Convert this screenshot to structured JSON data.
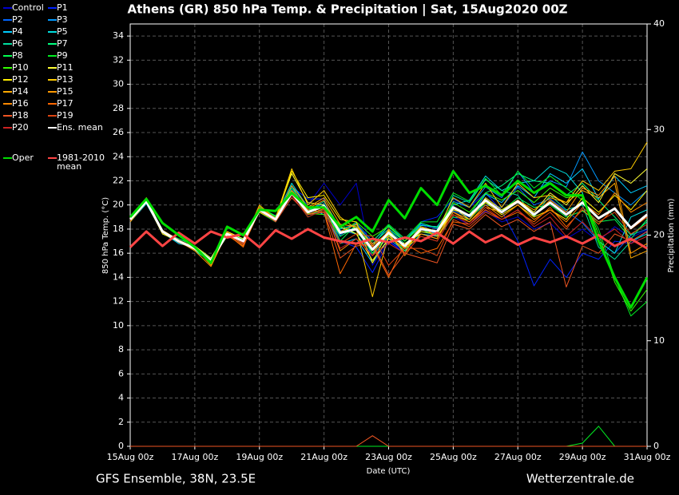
{
  "chart_data": {
    "type": "line",
    "title": "Athens  (GR)  850 hPa Temp. & Precipitation | Sat, 15Aug2020 00Z",
    "subtitle": "GFS Ensemble, 38N, 23.5E",
    "source": "Wetterzentrale.de",
    "xlabel": "Date (UTC)",
    "ylabel": "850 hPa Temp. (°C)",
    "y2label": "Precipitation (mm)",
    "x": [
      "15Aug 00z",
      "15Aug 12z",
      "16Aug 00z",
      "16Aug 12z",
      "17Aug 00z",
      "17Aug 12z",
      "18Aug 00z",
      "18Aug 12z",
      "19Aug 00z",
      "19Aug 12z",
      "20Aug 00z",
      "20Aug 12z",
      "21Aug 00z",
      "21Aug 12z",
      "22Aug 00z",
      "22Aug 12z",
      "23Aug 00z",
      "23Aug 12z",
      "24Aug 00z",
      "24Aug 12z",
      "25Aug 00z",
      "25Aug 12z",
      "26Aug 00z",
      "26Aug 12z",
      "27Aug 00z",
      "27Aug 12z",
      "28Aug 00z",
      "28Aug 12z",
      "29Aug 00z",
      "29Aug 12z",
      "30Aug 00z",
      "30Aug 12z",
      "31Aug 00z"
    ],
    "xlim": [
      "15Aug 00z",
      "31Aug 00z"
    ],
    "xticks": [
      "15Aug 00z",
      "17Aug 00z",
      "19Aug 00z",
      "21Aug 00z",
      "23Aug 00z",
      "25Aug 00z",
      "27Aug 00z",
      "29Aug 00z",
      "31Aug 00z"
    ],
    "ylim": [
      0,
      35
    ],
    "yticks": [
      0,
      2,
      4,
      6,
      8,
      10,
      12,
      14,
      16,
      18,
      20,
      22,
      24,
      26,
      28,
      30,
      32,
      34
    ],
    "y2lim": [
      0,
      40
    ],
    "y2ticks": [
      0,
      10,
      20,
      30,
      40
    ],
    "grid": true,
    "series": [
      {
        "name": "Control",
        "color": "#0000cc",
        "values": [
          18.9,
          20.4,
          17.9,
          17.1,
          16.3,
          15.3,
          17.7,
          17.1,
          19.5,
          18.6,
          21.3,
          20.0,
          21.8,
          20.0,
          21.8,
          15.0,
          17.0,
          16.2,
          18.5,
          17.4,
          19.0,
          18.4,
          19.5,
          18.6,
          19.0,
          18.0,
          18.5,
          17.2,
          18.0,
          17.0,
          18.2,
          17.3,
          17.9
        ]
      },
      {
        "name": "P1",
        "color": "#0022ff",
        "values": [
          18.7,
          20.2,
          17.7,
          16.9,
          16.5,
          15.5,
          17.5,
          17.2,
          19.8,
          19.0,
          21.5,
          20.5,
          20.5,
          17.0,
          16.5,
          14.4,
          17.0,
          16.0,
          18.6,
          19.0,
          20.5,
          19.8,
          21.0,
          19.5,
          17.0,
          13.3,
          15.5,
          14.0,
          16.0,
          15.5,
          17.0,
          16.8,
          17.8
        ]
      },
      {
        "name": "P2",
        "color": "#0066ff",
        "values": [
          18.8,
          20.3,
          17.8,
          17.1,
          16.4,
          15.4,
          17.5,
          17.0,
          19.6,
          18.7,
          20.8,
          19.4,
          20.0,
          17.5,
          18.5,
          17.0,
          18.2,
          17.2,
          18.4,
          18.0,
          19.5,
          19.0,
          20.0,
          19.8,
          21.5,
          20.0,
          20.5,
          19.5,
          18.5,
          17.0,
          16.0,
          17.5,
          18.0
        ]
      },
      {
        "name": "P3",
        "color": "#0099ff",
        "values": [
          18.9,
          20.5,
          17.9,
          17.0,
          16.3,
          15.2,
          17.6,
          16.9,
          19.7,
          18.9,
          21.2,
          19.6,
          20.1,
          17.9,
          17.6,
          15.8,
          17.4,
          16.4,
          18.1,
          17.6,
          20.3,
          19.8,
          21.5,
          20.6,
          22.8,
          21.0,
          22.0,
          21.5,
          24.4,
          22.0,
          21.0,
          20.0,
          21.2
        ]
      },
      {
        "name": "P4",
        "color": "#00ccff",
        "values": [
          18.6,
          20.1,
          17.7,
          16.8,
          16.5,
          15.6,
          17.8,
          17.1,
          19.4,
          18.6,
          21.6,
          19.2,
          19.4,
          16.8,
          17.2,
          15.2,
          17.2,
          16.2,
          17.6,
          17.4,
          19.4,
          18.8,
          20.9,
          20.2,
          21.6,
          20.6,
          22.6,
          21.8,
          23.0,
          20.5,
          22.4,
          21.0,
          21.6
        ]
      },
      {
        "name": "P5",
        "color": "#00dddd",
        "values": [
          18.8,
          20.2,
          17.8,
          17.1,
          16.4,
          15.4,
          17.7,
          17.0,
          19.7,
          19.0,
          21.8,
          19.8,
          19.2,
          18.0,
          18.4,
          16.8,
          18.0,
          17.0,
          18.3,
          18.2,
          20.0,
          20.4,
          22.4,
          21.2,
          21.8,
          22.0,
          23.2,
          22.6,
          21.0,
          17.0,
          16.0,
          19.0,
          19.6
        ]
      },
      {
        "name": "P6",
        "color": "#00e0a0",
        "values": [
          18.7,
          20.4,
          17.9,
          17.0,
          16.2,
          15.3,
          17.6,
          17.2,
          19.5,
          18.9,
          20.9,
          19.5,
          20.3,
          18.1,
          17.9,
          16.0,
          17.9,
          16.8,
          17.8,
          17.5,
          20.8,
          20.2,
          22.1,
          21.2,
          20.8,
          19.0,
          20.8,
          19.6,
          20.0,
          16.5,
          15.5,
          17.0,
          17.6
        ]
      },
      {
        "name": "P7",
        "color": "#00ff80",
        "values": [
          19.0,
          20.3,
          17.8,
          17.2,
          16.6,
          15.5,
          17.4,
          17.0,
          19.8,
          19.1,
          21.0,
          19.2,
          19.6,
          17.4,
          18.2,
          16.6,
          18.3,
          17.0,
          18.5,
          18.1,
          19.6,
          19.2,
          21.0,
          21.6,
          22.6,
          22.0,
          21.8,
          20.8,
          21.8,
          20.4,
          19.0,
          17.5,
          18.6
        ]
      },
      {
        "name": "P8",
        "color": "#00ff50",
        "values": [
          18.9,
          20.4,
          17.8,
          17.0,
          16.4,
          15.4,
          17.6,
          16.8,
          19.6,
          18.8,
          21.4,
          19.6,
          19.8,
          17.0,
          18.4,
          16.0,
          17.5,
          16.2,
          18.0,
          17.4,
          19.0,
          18.8,
          20.2,
          19.5,
          20.6,
          19.8,
          20.0,
          19.0,
          19.5,
          18.6,
          18.8,
          17.2,
          18.8
        ]
      },
      {
        "name": "P9",
        "color": "#00ee22",
        "values": [
          18.8,
          20.6,
          17.7,
          16.9,
          16.3,
          15.5,
          17.7,
          17.1,
          19.4,
          18.6,
          21.1,
          19.0,
          19.6,
          18.4,
          17.6,
          17.0,
          18.4,
          17.2,
          18.6,
          18.6,
          21.0,
          20.3,
          22.2,
          20.8,
          22.8,
          21.4,
          22.4,
          21.4,
          20.4,
          18.0,
          14.0,
          10.8,
          12.0
        ],
        "precip": [
          0,
          0,
          0,
          0,
          0,
          0,
          0,
          0,
          0,
          0,
          0,
          0,
          0,
          0,
          0,
          0,
          0,
          0,
          0,
          0,
          0,
          0,
          0,
          0,
          0,
          0,
          0,
          0,
          0.3,
          1.9,
          0,
          0,
          0
        ]
      },
      {
        "name": "P10",
        "color": "#33ff00",
        "values": [
          18.9,
          20.5,
          17.9,
          17.1,
          16.5,
          15.4,
          17.4,
          16.9,
          19.9,
          19.0,
          21.2,
          19.3,
          19.2,
          17.6,
          18.6,
          17.4,
          18.2,
          17.0,
          18.2,
          17.8,
          20.2,
          19.4,
          21.0,
          20.4,
          21.2,
          20.2,
          21.4,
          20.6,
          20.8,
          17.6,
          13.6,
          11.2,
          13.0
        ]
      },
      {
        "name": "P11",
        "color": "#ffff33",
        "values": [
          18.7,
          20.2,
          17.6,
          17.0,
          16.6,
          15.6,
          17.8,
          17.2,
          19.7,
          18.9,
          22.6,
          20.2,
          20.0,
          18.2,
          17.6,
          15.4,
          17.2,
          16.8,
          17.6,
          17.2,
          19.8,
          18.8,
          20.6,
          19.6,
          20.4,
          19.4,
          21.0,
          20.0,
          21.6,
          20.2,
          22.6,
          21.8,
          23.0
        ]
      },
      {
        "name": "P12",
        "color": "#ffee00",
        "values": [
          18.9,
          20.3,
          17.8,
          16.9,
          16.4,
          15.3,
          17.6,
          17.0,
          19.4,
          18.7,
          22.8,
          20.6,
          20.8,
          18.8,
          18.6,
          15.2,
          17.9,
          16.4,
          17.8,
          17.6,
          19.6,
          19.2,
          20.2,
          19.2,
          20.0,
          19.0,
          19.6,
          18.8,
          20.6,
          19.4,
          20.8,
          19.6,
          21.2
        ]
      },
      {
        "name": "P13",
        "color": "#ffcc00",
        "values": [
          18.8,
          20.4,
          17.9,
          17.1,
          16.3,
          15.4,
          17.5,
          17.1,
          19.6,
          18.9,
          23.0,
          20.0,
          21.2,
          19.0,
          18.0,
          12.4,
          17.6,
          16.0,
          18.2,
          17.8,
          20.6,
          19.8,
          21.8,
          19.8,
          21.8,
          20.6,
          20.8,
          20.2,
          22.0,
          21.2,
          22.8,
          23.0,
          25.2
        ]
      },
      {
        "name": "P14",
        "color": "#ffaa00",
        "values": [
          18.6,
          20.2,
          17.7,
          17.0,
          16.5,
          15.0,
          17.8,
          17.0,
          19.6,
          18.8,
          21.6,
          19.8,
          20.6,
          18.4,
          18.2,
          16.8,
          17.4,
          16.4,
          17.4,
          17.0,
          19.2,
          18.6,
          19.8,
          19.4,
          20.4,
          19.6,
          20.6,
          20.2,
          21.2,
          20.6,
          21.8,
          15.6,
          16.2
        ]
      },
      {
        "name": "P15",
        "color": "#ff9900",
        "values": [
          19.0,
          20.6,
          17.8,
          17.0,
          16.2,
          14.9,
          17.7,
          16.9,
          20.0,
          18.8,
          21.2,
          19.7,
          20.4,
          17.8,
          18.4,
          16.6,
          17.8,
          16.6,
          18.2,
          17.4,
          19.4,
          18.8,
          20.4,
          19.4,
          20.2,
          19.2,
          20.4,
          19.4,
          21.4,
          20.8,
          22.4,
          16.0,
          16.8
        ]
      },
      {
        "name": "P16",
        "color": "#ff8800",
        "values": [
          18.8,
          20.4,
          17.9,
          17.1,
          16.4,
          15.2,
          17.5,
          16.6,
          19.5,
          18.7,
          21.0,
          19.2,
          19.7,
          16.2,
          17.2,
          15.8,
          18.0,
          15.8,
          17.6,
          17.2,
          19.4,
          18.6,
          20.0,
          19.0,
          20.0,
          18.8,
          19.6,
          18.6,
          20.2,
          19.2,
          21.0,
          19.4,
          20.2
        ]
      },
      {
        "name": "P17",
        "color": "#ff6600",
        "values": [
          18.7,
          20.3,
          17.8,
          16.9,
          16.3,
          15.4,
          17.6,
          16.5,
          19.8,
          18.9,
          21.0,
          19.6,
          19.4,
          14.3,
          16.8,
          16.6,
          14.0,
          16.8,
          16.0,
          16.4,
          18.6,
          18.4,
          19.6,
          18.8,
          19.4,
          18.6,
          19.8,
          18.2,
          19.6,
          18.4,
          19.8,
          18.0,
          19.0
        ]
      },
      {
        "name": "P18",
        "color": "#ee5522",
        "values": [
          18.8,
          20.5,
          17.7,
          17.0,
          16.4,
          15.5,
          17.6,
          16.7,
          19.6,
          18.6,
          20.6,
          19.2,
          19.4,
          15.6,
          16.6,
          16.8,
          14.2,
          16.0,
          15.6,
          15.2,
          18.4,
          18.0,
          19.2,
          18.2,
          18.8,
          17.8,
          18.6,
          13.2,
          16.6,
          16.0,
          17.6,
          17.0,
          17.8
        ],
        "precip": [
          0,
          0,
          0,
          0,
          0,
          0,
          0,
          0,
          0,
          0,
          0,
          0,
          0,
          0,
          0,
          1.0,
          0,
          0,
          0,
          0,
          0,
          0,
          0,
          0,
          0,
          0,
          0,
          0,
          0,
          0,
          0,
          0,
          0
        ]
      },
      {
        "name": "P19",
        "color": "#dd4411",
        "values": [
          18.9,
          20.3,
          17.8,
          17.1,
          16.5,
          15.4,
          17.7,
          16.8,
          19.7,
          18.8,
          20.8,
          19.4,
          19.8,
          16.8,
          17.6,
          17.4,
          15.0,
          16.4,
          16.4,
          15.8,
          18.8,
          18.2,
          19.4,
          18.8,
          19.6,
          18.4,
          19.4,
          18.0,
          19.8,
          18.6,
          19.4,
          17.6,
          18.4
        ]
      },
      {
        "name": "P20",
        "color": "#cc2222",
        "values": [
          18.7,
          20.4,
          17.8,
          17.0,
          16.4,
          15.3,
          17.5,
          16.9,
          19.5,
          18.7,
          20.8,
          19.0,
          19.6,
          16.4,
          17.2,
          15.8,
          16.8,
          16.0,
          17.4,
          17.0,
          19.2,
          18.4,
          19.8,
          18.8,
          19.6,
          18.2,
          19.0,
          17.4,
          18.6,
          17.2,
          18.0,
          16.8,
          17.4
        ]
      },
      {
        "name": "Ens. mean",
        "color": "#ffffff",
        "values": [
          18.8,
          20.3,
          17.8,
          17.0,
          16.4,
          15.4,
          17.6,
          17.0,
          19.6,
          18.8,
          21.0,
          19.4,
          19.9,
          17.7,
          18.0,
          16.3,
          17.7,
          16.6,
          18.0,
          17.8,
          19.8,
          19.1,
          20.4,
          19.4,
          20.3,
          19.2,
          20.2,
          19.2,
          20.2,
          18.9,
          19.7,
          18.1,
          19.2
        ]
      },
      {
        "name": "1981-2010 mean",
        "color": "#ff4444",
        "values": [
          16.5,
          17.8,
          16.6,
          17.7,
          16.8,
          17.8,
          17.3,
          17.6,
          16.5,
          17.9,
          17.2,
          18.0,
          17.3,
          17.0,
          16.8,
          17.2,
          16.9,
          17.3,
          17.0,
          17.7,
          16.8,
          17.8,
          16.9,
          17.5,
          16.7,
          17.3,
          16.9,
          17.4,
          16.8,
          17.5,
          16.6,
          17.2,
          16.4
        ]
      },
      {
        "name": "Oper",
        "color": "#00dd00",
        "values": [
          19.0,
          20.5,
          18.5,
          17.5,
          16.5,
          15.2,
          18.2,
          17.5,
          19.6,
          19.5,
          21.0,
          19.8,
          19.8,
          18.2,
          19.0,
          17.8,
          20.4,
          18.9,
          21.4,
          20.0,
          22.8,
          21.0,
          21.6,
          20.8,
          22.0,
          21.0,
          21.8,
          20.8,
          20.8,
          17.0,
          14.0,
          11.5,
          14.0
        ]
      }
    ]
  }
}
